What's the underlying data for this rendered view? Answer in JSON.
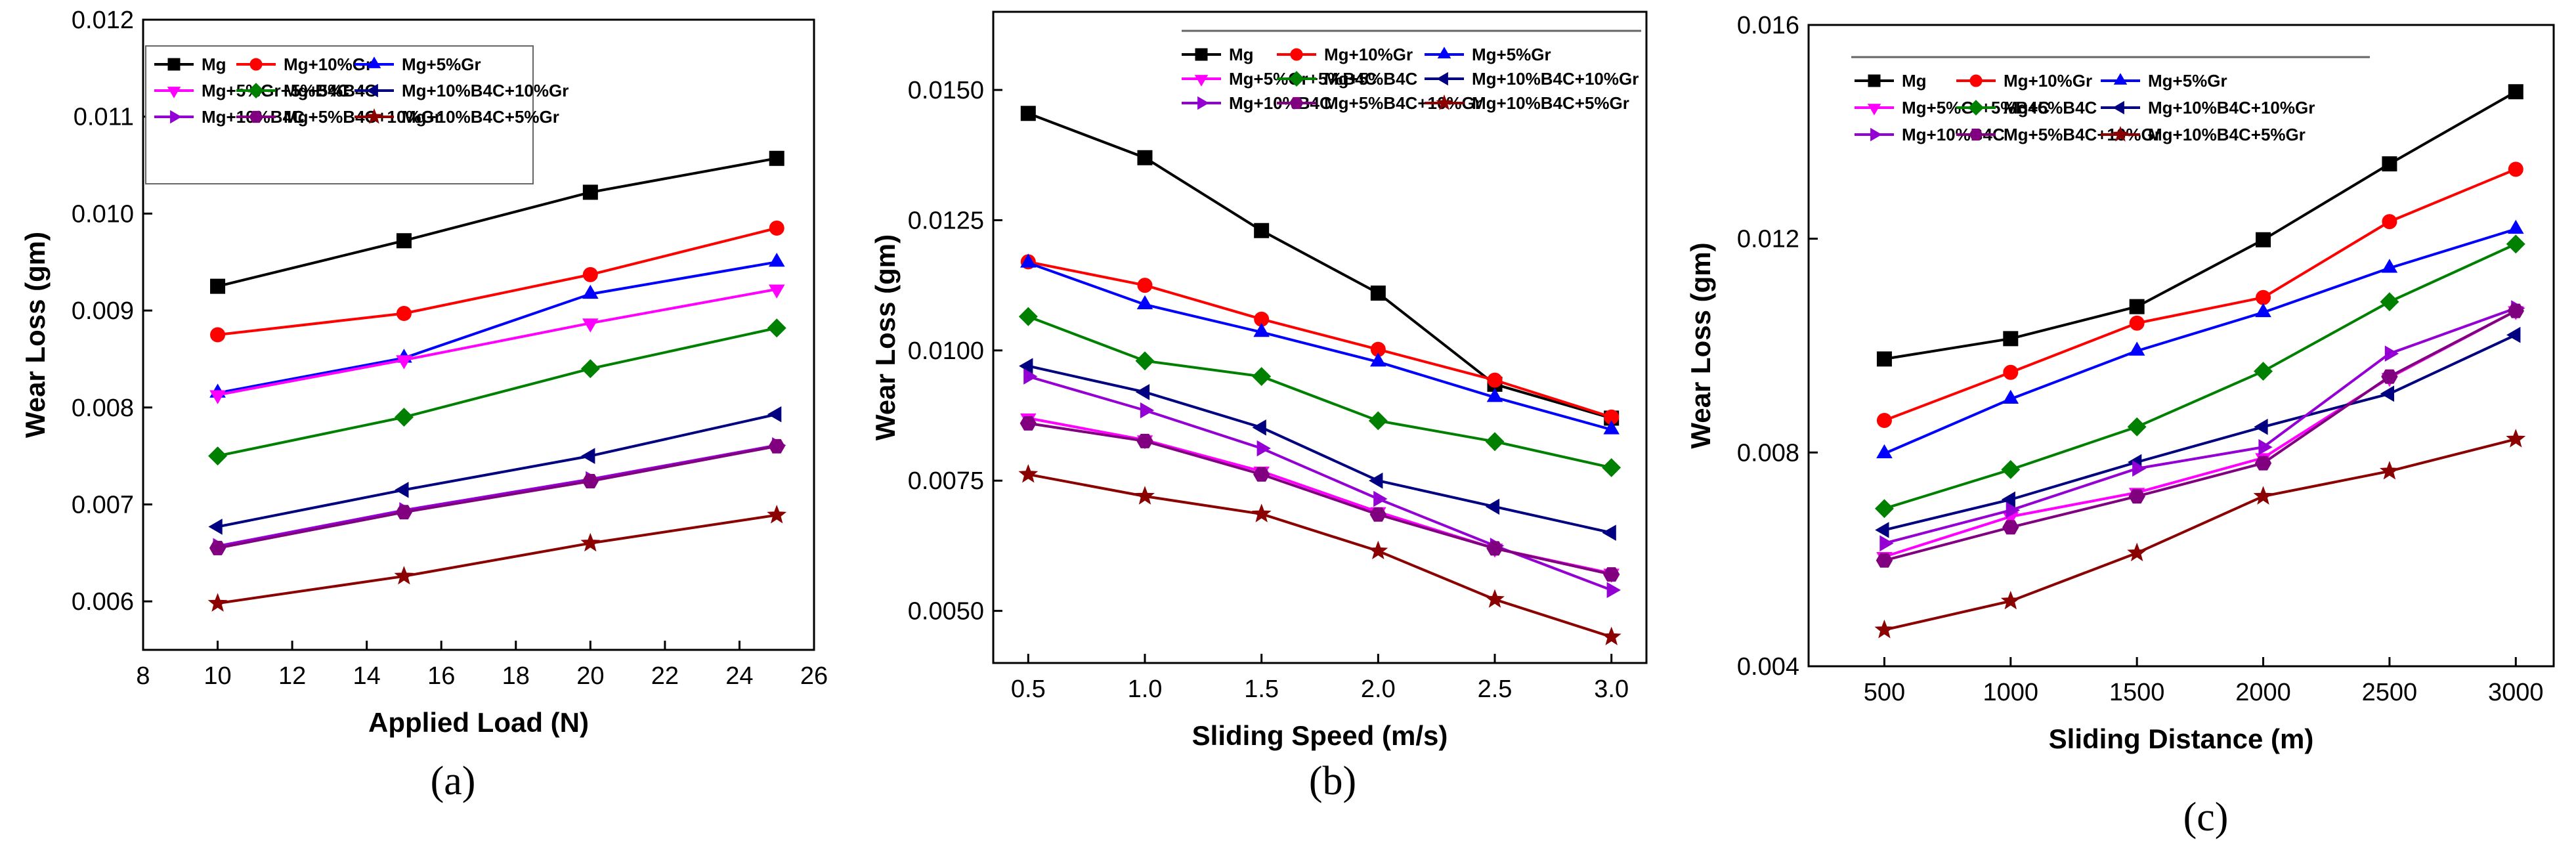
{
  "colors": {
    "Mg": "#000000",
    "Mg+10%Gr": "#ff0000",
    "Mg+5%Gr": "#0000ff",
    "Mg+5%Gr+5%B4C": "#ff00ff",
    "Mg+5%B4C": "#008000",
    "Mg+10%B4C+10%Gr": "#000080",
    "Mg+10%B4C": "#9400d3",
    "Mg+5%B4C+10%Gr": "#800080",
    "Mg+10%B4C+5%Gr": "#8b0000"
  },
  "markers": {
    "Mg": "square",
    "Mg+10%Gr": "circle",
    "Mg+5%Gr": "triangle-up",
    "Mg+5%Gr+5%B4C": "triangle-down",
    "Mg+5%B4C": "diamond",
    "Mg+10%B4C+10%Gr": "triangle-left",
    "Mg+10%B4C": "triangle-right",
    "Mg+5%B4C+10%Gr": "hexagon",
    "Mg+10%B4C+5%Gr": "star"
  },
  "chart_data": [
    {
      "type": "line",
      "caption": "(a)",
      "xlabel": "Applied Load (N)",
      "ylabel": "Wear Loss (gm)",
      "xlim": [
        8,
        26
      ],
      "ylim": [
        0.0055,
        0.012
      ],
      "xticks": [
        "8",
        "10",
        "12",
        "14",
        "16",
        "18",
        "20",
        "22",
        "24",
        "26"
      ],
      "yticks": [
        "0.006",
        "0.007",
        "0.008",
        "0.009",
        "0.010",
        "0.011",
        "0.012"
      ],
      "x": [
        10,
        15,
        20,
        25
      ],
      "legend_placement": "top-left",
      "series": [
        {
          "name": "Mg",
          "values": [
            0.00925,
            0.00972,
            0.01022,
            0.01057
          ]
        },
        {
          "name": "Mg+10%Gr",
          "values": [
            0.00875,
            0.00897,
            0.00937,
            0.00985
          ]
        },
        {
          "name": "Mg+5%Gr",
          "values": [
            0.00815,
            0.00851,
            0.00917,
            0.0095
          ]
        },
        {
          "name": "Mg+5%Gr+5%B4C",
          "values": [
            0.00813,
            0.00849,
            0.00887,
            0.00922
          ]
        },
        {
          "name": "Mg+5%B4C",
          "values": [
            0.0075,
            0.0079,
            0.0084,
            0.00882
          ]
        },
        {
          "name": "Mg+10%B4C+10%Gr",
          "values": [
            0.00677,
            0.00715,
            0.0075,
            0.00793
          ]
        },
        {
          "name": "Mg+10%B4C",
          "values": [
            0.00657,
            0.00694,
            0.00726,
            0.00761
          ]
        },
        {
          "name": "Mg+5%B4C+10%Gr",
          "values": [
            0.00655,
            0.00692,
            0.00724,
            0.0076
          ]
        },
        {
          "name": "Mg+10%B4C+5%Gr",
          "values": [
            0.00598,
            0.00626,
            0.0066,
            0.00689
          ]
        }
      ]
    },
    {
      "type": "line",
      "caption": "(b)",
      "xlabel": "Sliding Speed (m/s)",
      "ylabel": "Wear Loss (gm)",
      "xlim": [
        0.35,
        3.15
      ],
      "ylim": [
        0.004,
        0.0165
      ],
      "xticks": [
        "0.5",
        "1.0",
        "1.5",
        "2.0",
        "2.5",
        "3.0"
      ],
      "yticks": [
        "0.0050",
        "0.0075",
        "0.0100",
        "0.0125",
        "0.0150"
      ],
      "x": [
        0.5,
        1.0,
        1.5,
        2.0,
        2.5,
        3.0
      ],
      "legend_placement": "top-right",
      "series": [
        {
          "name": "Mg",
          "values": [
            0.01455,
            0.0137,
            0.0123,
            0.0111,
            0.00935,
            0.0087
          ]
        },
        {
          "name": "Mg+10%Gr",
          "values": [
            0.0117,
            0.01125,
            0.0106,
            0.01002,
            0.00943,
            0.00872
          ]
        },
        {
          "name": "Mg+5%Gr",
          "values": [
            0.01168,
            0.01088,
            0.01035,
            0.00978,
            0.0091,
            0.00848
          ]
        },
        {
          "name": "Mg+5%Gr+5%B4C",
          "values": [
            0.0087,
            0.00828,
            0.00768,
            0.0069,
            0.0062,
            0.00572
          ]
        },
        {
          "name": "Mg+5%B4C",
          "values": [
            0.01065,
            0.0098,
            0.0095,
            0.00865,
            0.00825,
            0.00775
          ]
        },
        {
          "name": "Mg+10%B4C+10%Gr",
          "values": [
            0.0097,
            0.0092,
            0.00852,
            0.0075,
            0.007,
            0.0065
          ]
        },
        {
          "name": "Mg+10%B4C",
          "values": [
            0.0095,
            0.00885,
            0.00812,
            0.00715,
            0.00625,
            0.0054
          ]
        },
        {
          "name": "Mg+5%B4C+10%Gr",
          "values": [
            0.0086,
            0.00826,
            0.00762,
            0.00685,
            0.0062,
            0.0057
          ]
        },
        {
          "name": "Mg+10%B4C+5%Gr",
          "values": [
            0.00762,
            0.0072,
            0.00686,
            0.00615,
            0.00522,
            0.0045
          ]
        }
      ]
    },
    {
      "type": "line",
      "caption": "(c)",
      "xlabel": "Sliding Distance (m)",
      "ylabel": "Wear Loss (gm)",
      "xlim": [
        200,
        3150
      ],
      "ylim": [
        0.004,
        0.016
      ],
      "xticks": [
        "500",
        "1000",
        "1500",
        "2000",
        "2500",
        "3000"
      ],
      "yticks": [
        "0.004",
        "0.008",
        "0.012",
        "0.016"
      ],
      "x": [
        500,
        1000,
        1500,
        2000,
        2500,
        3000
      ],
      "legend_placement": "top-left",
      "series": [
        {
          "name": "Mg",
          "values": [
            0.00975,
            0.01013,
            0.01073,
            0.01198,
            0.0134,
            0.01475
          ]
        },
        {
          "name": "Mg+10%Gr",
          "values": [
            0.0086,
            0.0095,
            0.01042,
            0.0109,
            0.01232,
            0.0133
          ]
        },
        {
          "name": "Mg+5%Gr",
          "values": [
            0.00798,
            0.009,
            0.0099,
            0.01062,
            0.01145,
            0.01218
          ]
        },
        {
          "name": "Mg+5%Gr+5%B4C",
          "values": [
            0.00605,
            0.0068,
            0.00725,
            0.0079,
            0.0094,
            0.01065
          ]
        },
        {
          "name": "Mg+5%B4C",
          "values": [
            0.00695,
            0.00768,
            0.00848,
            0.00952,
            0.01082,
            0.0119
          ]
        },
        {
          "name": "Mg+10%B4C+10%Gr",
          "values": [
            0.00655,
            0.00712,
            0.00782,
            0.00848,
            0.0091,
            0.0102
          ]
        },
        {
          "name": "Mg+10%B4C",
          "values": [
            0.0063,
            0.00692,
            0.0077,
            0.0081,
            0.00985,
            0.0107
          ]
        },
        {
          "name": "Mg+5%B4C+10%Gr",
          "values": [
            0.00598,
            0.0066,
            0.00718,
            0.0078,
            0.00942,
            0.01065
          ]
        },
        {
          "name": "Mg+10%B4C+5%Gr",
          "values": [
            0.00468,
            0.00522,
            0.00612,
            0.00718,
            0.00765,
            0.00825
          ]
        }
      ]
    }
  ]
}
